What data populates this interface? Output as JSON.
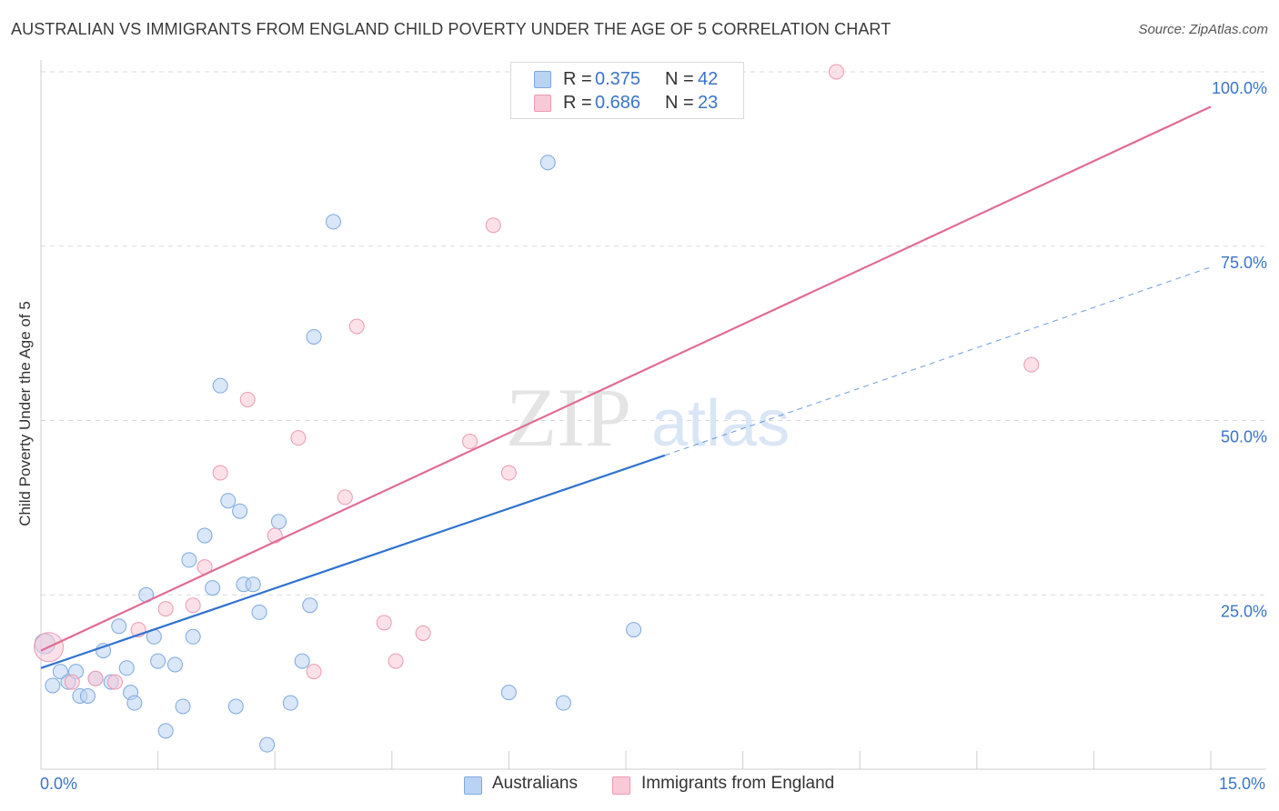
{
  "header": {
    "title": "AUSTRALIAN VS IMMIGRANTS FROM ENGLAND CHILD POVERTY UNDER THE AGE OF 5 CORRELATION CHART",
    "source": "Source: ZipAtlas.com"
  },
  "watermark": {
    "zip": "ZIP",
    "atlas": "atlas"
  },
  "legend_top": {
    "rows": [
      {
        "r_label": "R = ",
        "r_value": "0.375",
        "n_label": "N = ",
        "n_value": "42"
      },
      {
        "r_label": "R = ",
        "r_value": "0.686",
        "n_label": "N = ",
        "n_value": "23"
      }
    ]
  },
  "legend_bottom": {
    "series1": "Australians",
    "series2": "Immigrants from England"
  },
  "axis": {
    "x_min_label": "0.0%",
    "x_max_label": "15.0%",
    "y_tick_labels": [
      "25.0%",
      "50.0%",
      "75.0%",
      "100.0%"
    ]
  },
  "colors": {
    "blue_fill": "#b9d3f4",
    "blue_stroke": "#7fa8dd",
    "blue_line": "#2f72d0",
    "pink_fill": "#f9c9d7",
    "pink_stroke": "#eb9ab3",
    "pink_line": "#e26b93",
    "tick_text": "#3a74c9",
    "grid": "#d8d8d8"
  },
  "chart_data": {
    "type": "scatter",
    "title": "AUSTRALIAN VS IMMIGRANTS FROM ENGLAND CHILD POVERTY UNDER THE AGE OF 5 CORRELATION CHART",
    "xlabel": "",
    "ylabel": "Child Poverty Under the Age of 5",
    "xlim": [
      0,
      15
    ],
    "ylim": [
      0,
      100
    ],
    "y_ticks": [
      25,
      50,
      75,
      100
    ],
    "grid": true,
    "legend_position": "bottom",
    "series": [
      {
        "name": "Australians",
        "color": "#b9d3f4",
        "points": [
          [
            0.05,
            18.0
          ],
          [
            0.15,
            12.0
          ],
          [
            0.25,
            14.0
          ],
          [
            0.35,
            12.5
          ],
          [
            0.45,
            14.0
          ],
          [
            0.5,
            10.5
          ],
          [
            0.6,
            10.5
          ],
          [
            0.7,
            13.0
          ],
          [
            0.8,
            17.0
          ],
          [
            0.9,
            12.5
          ],
          [
            1.0,
            20.5
          ],
          [
            1.1,
            14.5
          ],
          [
            1.15,
            11.0
          ],
          [
            1.2,
            9.5
          ],
          [
            1.35,
            25.0
          ],
          [
            1.45,
            19.0
          ],
          [
            1.5,
            15.5
          ],
          [
            1.6,
            5.5
          ],
          [
            1.72,
            15.0
          ],
          [
            1.82,
            9.0
          ],
          [
            1.9,
            30.0
          ],
          [
            1.95,
            19.0
          ],
          [
            2.1,
            33.5
          ],
          [
            2.2,
            26.0
          ],
          [
            2.3,
            55.0
          ],
          [
            2.4,
            38.5
          ],
          [
            2.5,
            9.0
          ],
          [
            2.55,
            37.0
          ],
          [
            2.6,
            26.5
          ],
          [
            2.72,
            26.5
          ],
          [
            2.8,
            22.5
          ],
          [
            2.9,
            3.5
          ],
          [
            3.05,
            35.5
          ],
          [
            3.2,
            9.5
          ],
          [
            3.35,
            15.5
          ],
          [
            3.45,
            23.5
          ],
          [
            3.5,
            62.0
          ],
          [
            3.75,
            78.5
          ],
          [
            6.0,
            11.0
          ],
          [
            6.5,
            87.0
          ],
          [
            6.7,
            9.5
          ],
          [
            7.6,
            20.0
          ]
        ],
        "trend": {
          "x": [
            0,
            8.0
          ],
          "y": [
            14.5,
            45.0
          ],
          "dashed_to": [
            15,
            72.0
          ]
        }
      },
      {
        "name": "Immigrants from England",
        "color": "#f9c9d7",
        "points": [
          [
            0.1,
            17.5
          ],
          [
            0.4,
            12.5
          ],
          [
            0.7,
            13.0
          ],
          [
            0.95,
            12.5
          ],
          [
            1.25,
            20.0
          ],
          [
            1.6,
            23.0
          ],
          [
            1.95,
            23.5
          ],
          [
            2.1,
            29.0
          ],
          [
            2.3,
            42.5
          ],
          [
            2.65,
            53.0
          ],
          [
            3.0,
            33.5
          ],
          [
            3.3,
            47.5
          ],
          [
            3.5,
            14.0
          ],
          [
            3.9,
            39.0
          ],
          [
            4.05,
            63.5
          ],
          [
            4.4,
            21.0
          ],
          [
            4.55,
            15.5
          ],
          [
            4.9,
            19.5
          ],
          [
            5.5,
            47.0
          ],
          [
            5.8,
            78.0
          ],
          [
            6.0,
            42.5
          ],
          [
            10.2,
            100.0
          ],
          [
            12.7,
            58.0
          ]
        ],
        "trend": {
          "x": [
            0,
            15
          ],
          "y": [
            17.0,
            95.0
          ]
        }
      }
    ]
  }
}
